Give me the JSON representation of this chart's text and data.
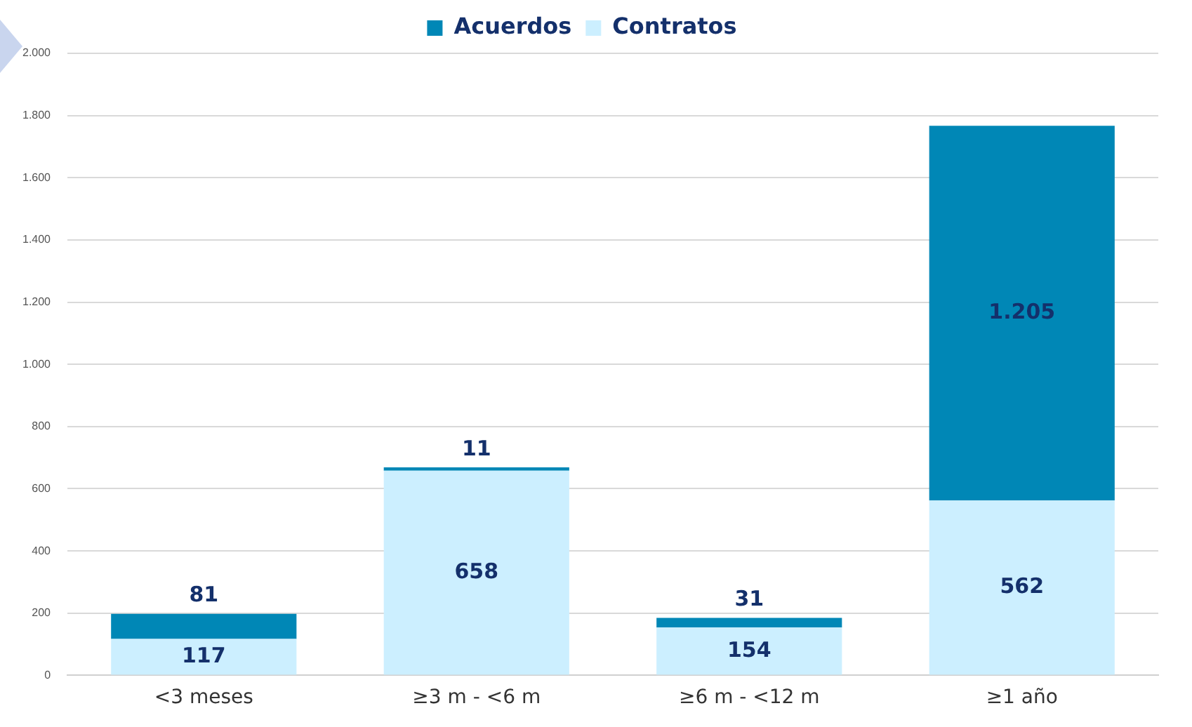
{
  "chart_data": {
    "type": "bar",
    "stacked": true,
    "categories": [
      "<3 meses",
      "≥3 m - <6 m",
      "≥6 m - <12 m",
      "≥1 año"
    ],
    "series": [
      {
        "name": "Contratos",
        "color": "#ccefff",
        "values": [
          117,
          658,
          154,
          562
        ],
        "value_labels": [
          "117",
          "658",
          "154",
          "562"
        ]
      },
      {
        "name": "Acuerdos",
        "color": "#0087b6",
        "values": [
          81,
          11,
          31,
          1205
        ],
        "value_labels": [
          "81",
          "11",
          "31",
          "1.205"
        ]
      }
    ],
    "ylim": [
      0,
      2000
    ],
    "yticks": [
      0,
      200,
      400,
      600,
      800,
      {
        "value": 1000,
        "label": "1.000"
      },
      {
        "value": 1200,
        "label": "1.200"
      },
      {
        "value": 1400,
        "label": "1.400"
      },
      {
        "value": 1600,
        "label": "1.600"
      },
      {
        "value": 1800,
        "label": "1.800"
      },
      {
        "value": 2000,
        "label": "2.000"
      }
    ],
    "grid": "y",
    "legend": "top"
  }
}
